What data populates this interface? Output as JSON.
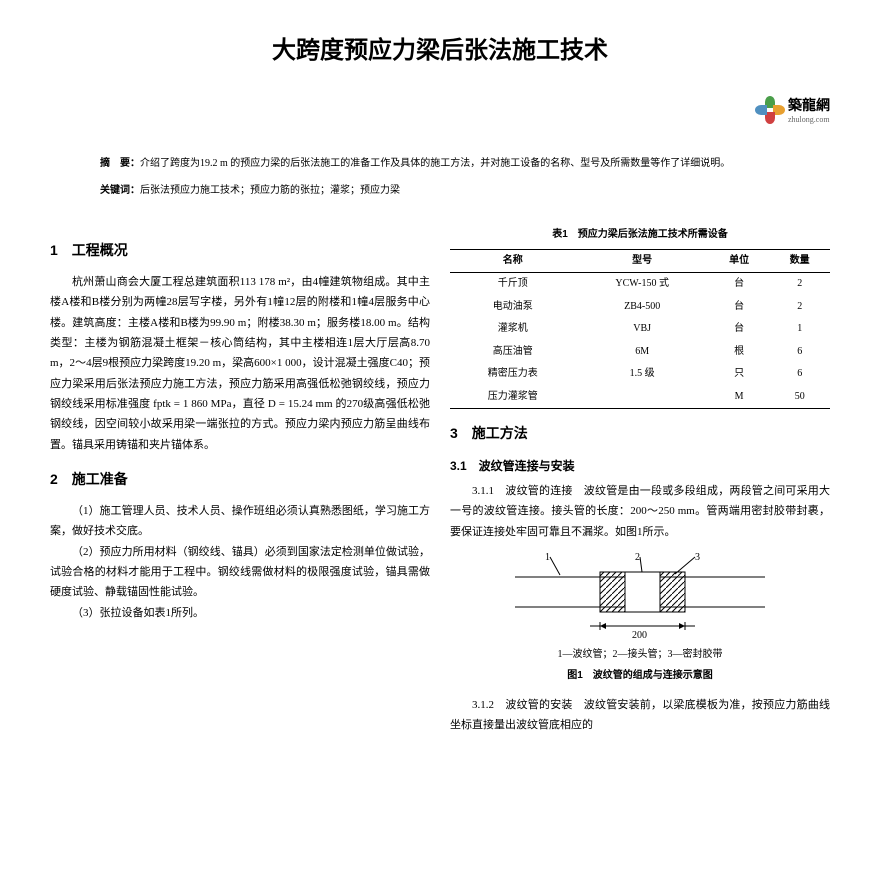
{
  "title": "大跨度预应力梁后张法施工技术",
  "logo": {
    "name": "築龍網",
    "sub": "zhulong.com"
  },
  "abstract": {
    "label": "摘　要：",
    "text": "介绍了跨度为19.2 m 的预应力梁的后张法施工的准备工作及具体的施工方法，并对施工设备的名称、型号及所需数量等作了详细说明。"
  },
  "keywords": {
    "label": "关键词：",
    "text": "后张法预应力施工技术；预应力筋的张拉；灌浆；预应力梁"
  },
  "left": {
    "s1": {
      "h": "1　工程概况",
      "p": "杭州萧山商会大厦工程总建筑面积113 178 m²，由4幢建筑物组成。其中主楼A楼和B楼分别为两幢28层写字楼，另外有1幢12层的附楼和1幢4层服务中心楼。建筑高度：主楼A楼和B楼为99.90 m；附楼38.30 m；服务楼18.00 m。结构类型：主楼为钢筋混凝土框架－核心筒结构，其中主楼相连1层大厅层高8.70 m，2～4层9根预应力梁跨度19.20 m，梁高600×1 000，设计混凝土强度C40；预应力梁采用后张法预应力施工方法，预应力筋采用高强低松弛钢绞线，预应力钢绞线采用标准强度 fptk = 1 860 MPa，直径 D = 15.24 mm 的270级高强低松弛钢绞线，因空间较小故采用梁一端张拉的方式。预应力梁内预应力筋呈曲线布置。锚具采用铸锚和夹片锚体系。"
    },
    "s2": {
      "h": "2　施工准备",
      "i1": "（1）施工管理人员、技术人员、操作班组必须认真熟悉图纸，学习施工方案，做好技术交底。",
      "i2": "（2）预应力所用材料（钢绞线、锚具）必须到国家法定检测单位做试验，试验合格的材料才能用于工程中。钢绞线需做材料的极限强度试验，锚具需做硬度试验、静载锚固性能试验。",
      "i3": "（3）张拉设备如表1所列。"
    }
  },
  "table": {
    "title": "表1　预应力梁后张法施工技术所需设备",
    "headers": [
      "名称",
      "型号",
      "单位",
      "数量"
    ],
    "rows": [
      [
        "千斤顶",
        "YCW-150 式",
        "台",
        "2"
      ],
      [
        "电动油泵",
        "ZB4-500",
        "台",
        "2"
      ],
      [
        "灌浆机",
        "VBJ",
        "台",
        "1"
      ],
      [
        "高压油管",
        "6M",
        "根",
        "6"
      ],
      [
        "精密压力表",
        "1.5 级",
        "只",
        "6"
      ],
      [
        "压力灌浆管",
        "",
        "M",
        "50"
      ]
    ]
  },
  "right": {
    "s3": {
      "h": "3　施工方法"
    },
    "s31": {
      "h": "3.1　波纹管连接与安装"
    },
    "s311": "3.1.1　波纹管的连接　波纹管是由一段或多段组成，两段管之间可采用大一号的波纹管连接。接头管的长度：200～250 mm。管两端用密封胶带封裹，要保证连接处牢固可靠且不漏浆。如图1所示。",
    "fig": {
      "cap": "1—波纹管；2—接头管；3—密封胶带",
      "title": "图1　波纹管的组成与连接示意图",
      "dim": "200"
    },
    "s312": "3.1.2　波纹管的安装　波纹管安装前，以梁底模板为准，按预应力筋曲线坐标直接量出波纹管底相应的"
  },
  "colors": {
    "text": "#000000",
    "bg": "#ffffff",
    "hatch": "#000000"
  }
}
